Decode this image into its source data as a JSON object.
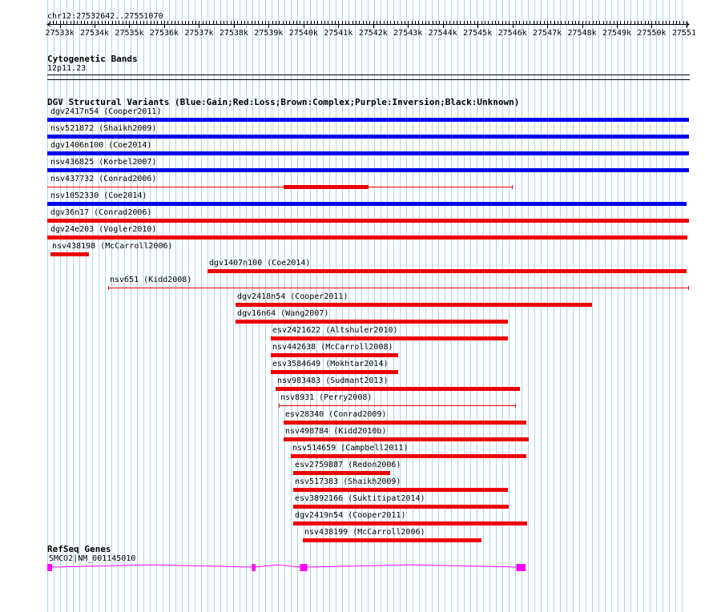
{
  "region": {
    "label": "chr12:27532642..27551070",
    "start": 27532642,
    "end": 27551070
  },
  "ruler": {
    "ticks": [
      "27533k",
      "27534k",
      "27535k",
      "27536k",
      "27537k",
      "27538k",
      "27539k",
      "27540k",
      "27541k",
      "27542k",
      "27543k",
      "27544k",
      "27545k",
      "27546k",
      "27547k",
      "27548k",
      "27549k",
      "27550k",
      "27551k"
    ]
  },
  "tracks": {
    "cytoband": {
      "title": "Cytogenetic Bands",
      "band": "12p11.23"
    },
    "dgv": {
      "title": "DGV Structural Variants (Blue:Gain;Red:Loss;Brown:Complex;Purple:Inversion;Black:Unknown)",
      "colors": {
        "gain": "#0000ee",
        "loss": "#ee0000"
      },
      "features": [
        {
          "label": "dgv2417n54 (Cooper2011)",
          "type": "gain",
          "start": 27532642,
          "end": 27551070
        },
        {
          "label": "nsv521872 (Shaikh2009)",
          "type": "gain",
          "start": 27532642,
          "end": 27551070
        },
        {
          "label": "dgv1406n100 (Coe2014)",
          "type": "gain",
          "start": 27532642,
          "end": 27551070
        },
        {
          "label": "nsv436825 (Korbel2007)",
          "type": "gain",
          "start": 27532642,
          "end": 27551070
        },
        {
          "label": "nsv437732 (Conrad2006)",
          "type": "loss",
          "start": 27532642,
          "end": 27546010,
          "thick_start": 27539420,
          "thick_end": 27541860
        },
        {
          "label": "nsv1052330 (Coe2014)",
          "type": "gain",
          "start": 27532642,
          "end": 27551000
        },
        {
          "label": "dgv36n17 (Conrad2006)",
          "type": "loss",
          "start": 27532642,
          "end": 27551070
        },
        {
          "label": "dgv24e203 (Vogler2010)",
          "type": "loss",
          "start": 27532642,
          "end": 27551030
        },
        {
          "label": "nsv438198 (McCarroll2006)",
          "type": "loss",
          "start": 27532730,
          "end": 27533840
        },
        {
          "label": "dgv1407n100 (Coe2014)",
          "type": "loss",
          "start": 27537240,
          "end": 27551000
        },
        {
          "label": "nsv651 (Kidd2008)",
          "type": "loss",
          "start": 27534400,
          "end": 27551070,
          "thin": true
        },
        {
          "label": "dgv2418n54 (Cooper2011)",
          "type": "loss",
          "start": 27538050,
          "end": 27548290
        },
        {
          "label": "dgv16n64 (Wang2007)",
          "type": "loss",
          "start": 27538050,
          "end": 27545880
        },
        {
          "label": "esv2421622 (Altshuler2010)",
          "type": "loss",
          "start": 27539050,
          "end": 27545880
        },
        {
          "label": "nsv442638 (McCarroll2008)",
          "type": "loss",
          "start": 27539050,
          "end": 27542710
        },
        {
          "label": "esv3584649 (Mokhtar2014)",
          "type": "loss",
          "start": 27539050,
          "end": 27542710
        },
        {
          "label": "nsv983483 (Sudmant2013)",
          "type": "loss",
          "start": 27539210,
          "end": 27546220
        },
        {
          "label": "nsv8931 (Perry2008)",
          "type": "loss",
          "start": 27539280,
          "end": 27546100,
          "thin": true
        },
        {
          "label": "esv28340 (Conrad2009)",
          "type": "loss",
          "start": 27539420,
          "end": 27546400
        },
        {
          "label": "nsv498784 (Kidd2010b)",
          "type": "loss",
          "start": 27539420,
          "end": 27546470
        },
        {
          "label": "nsv514659 (Campbell2011)",
          "type": "loss",
          "start": 27539630,
          "end": 27546400
        },
        {
          "label": "esv2759887 (Redon2006)",
          "type": "loss",
          "start": 27539700,
          "end": 27542480
        },
        {
          "label": "nsv517383 (Shaikh2009)",
          "type": "loss",
          "start": 27539700,
          "end": 27545880
        },
        {
          "label": "esv3892166 (Suktitipat2014)",
          "type": "loss",
          "start": 27539700,
          "end": 27545900
        },
        {
          "label": "dgv2419n54 (Cooper2011)",
          "type": "loss",
          "start": 27539700,
          "end": 27546420
        },
        {
          "label": "nsv438199 (McCarroll2006)",
          "type": "loss",
          "start": 27539980,
          "end": 27545100
        }
      ]
    },
    "refseq": {
      "title": "RefSeq Genes",
      "gene_label": "SMCO2|NM_001145010",
      "color": "#ff00ff",
      "start": 27532642,
      "end": 27546380,
      "exons": [
        {
          "start": 27532642,
          "end": 27532780
        },
        {
          "start": 27538520,
          "end": 27538620
        },
        {
          "start": 27539900,
          "end": 27540110
        },
        {
          "start": 27546110,
          "end": 27546380
        }
      ]
    }
  }
}
